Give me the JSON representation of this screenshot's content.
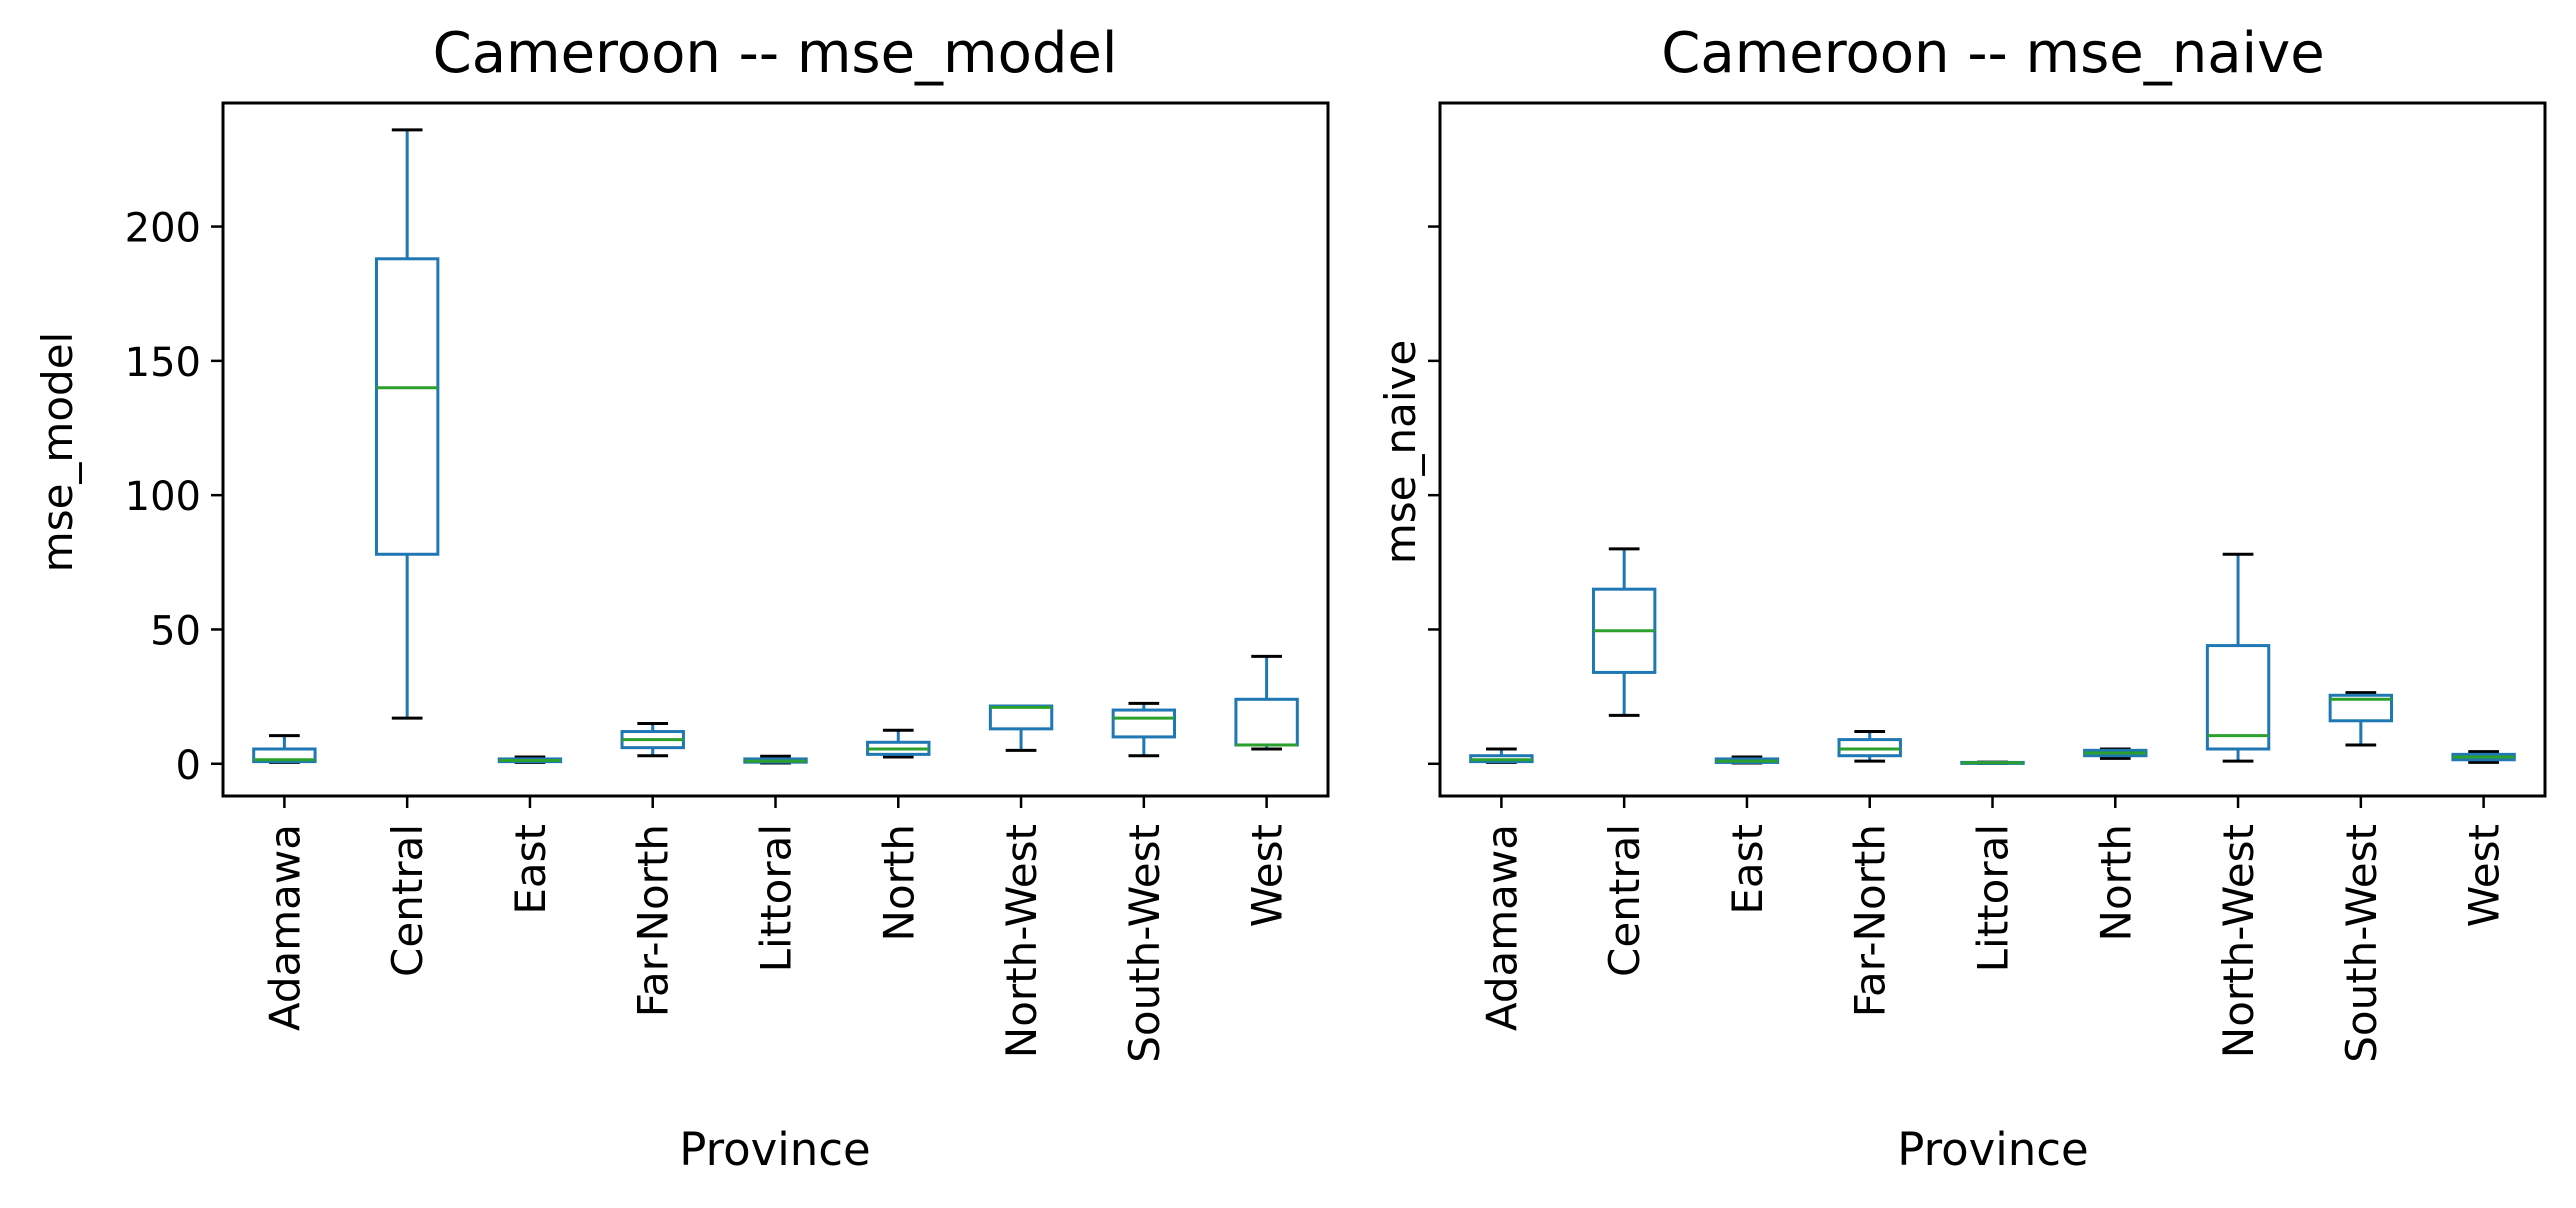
{
  "chart_data": [
    {
      "type": "box",
      "title": "Cameroon -- mse_model",
      "xlabel": "Province",
      "ylabel": "mse_model",
      "ylim": [
        -12,
        246
      ],
      "yticks": [
        0,
        50,
        100,
        150,
        200
      ],
      "ytick_labels": [
        "0",
        "50",
        "100",
        "150",
        "200"
      ],
      "grid": false,
      "categories": [
        "Adamawa",
        "Central",
        "East",
        "Far-North",
        "Littoral",
        "North",
        "North-West",
        "South-West",
        "West"
      ],
      "boxes": [
        {
          "whisker_low": 0.5,
          "q1": 0.8,
          "median": 1.5,
          "q3": 5.5,
          "whisker_high": 10.5
        },
        {
          "whisker_low": 17,
          "q1": 78,
          "median": 140,
          "q3": 188,
          "whisker_high": 236
        },
        {
          "whisker_low": 0.5,
          "q1": 0.8,
          "median": 1.2,
          "q3": 1.8,
          "whisker_high": 2.5
        },
        {
          "whisker_low": 3,
          "q1": 6,
          "median": 9,
          "q3": 12,
          "whisker_high": 15
        },
        {
          "whisker_low": 0.3,
          "q1": 0.6,
          "median": 1,
          "q3": 1.8,
          "whisker_high": 2.8
        },
        {
          "whisker_low": 2.5,
          "q1": 3.5,
          "median": 5.5,
          "q3": 8,
          "whisker_high": 12.5
        },
        {
          "whisker_low": 5,
          "q1": 13,
          "median": 21,
          "q3": 21.5,
          "whisker_high": 21.5
        },
        {
          "whisker_low": 3,
          "q1": 10,
          "median": 17,
          "q3": 20,
          "whisker_high": 22.5
        },
        {
          "whisker_low": 5.5,
          "q1": 7,
          "median": 7,
          "q3": 24,
          "whisker_high": 40
        }
      ]
    },
    {
      "type": "box",
      "title": "Cameroon -- mse_naive",
      "xlabel": "Province",
      "ylabel": "mse_naive",
      "ylim": [
        -12,
        246
      ],
      "yticks": [
        0,
        50,
        100,
        150,
        200
      ],
      "ytick_labels": [
        "",
        "",
        "",
        "",
        ""
      ],
      "grid": false,
      "categories": [
        "Adamawa",
        "Central",
        "East",
        "Far-North",
        "Littoral",
        "North",
        "North-West",
        "South-West",
        "West"
      ],
      "boxes": [
        {
          "whisker_low": 0.5,
          "q1": 0.8,
          "median": 1.5,
          "q3": 3,
          "whisker_high": 5.5
        },
        {
          "whisker_low": 18,
          "q1": 34,
          "median": 49.5,
          "q3": 65,
          "whisker_high": 80
        },
        {
          "whisker_low": 0.3,
          "q1": 0.5,
          "median": 1,
          "q3": 1.8,
          "whisker_high": 2.5
        },
        {
          "whisker_low": 1,
          "q1": 3,
          "median": 5.5,
          "q3": 9,
          "whisker_high": 12
        },
        {
          "whisker_low": 0.1,
          "q1": 0.2,
          "median": 0.4,
          "q3": 0.5,
          "whisker_high": 0.6
        },
        {
          "whisker_low": 2,
          "q1": 3,
          "median": 4,
          "q3": 5,
          "whisker_high": 5.5
        },
        {
          "whisker_low": 1,
          "q1": 5.5,
          "median": 10.5,
          "q3": 44,
          "whisker_high": 78
        },
        {
          "whisker_low": 7,
          "q1": 16,
          "median": 24,
          "q3": 25.5,
          "whisker_high": 26.5
        },
        {
          "whisker_low": 0.5,
          "q1": 1.5,
          "median": 2.5,
          "q3": 3.5,
          "whisker_high": 4.5
        }
      ]
    }
  ],
  "colors": {
    "box": "#1f77b4",
    "median": "#2ca02c",
    "cap": "#000000",
    "axes": "#000000"
  }
}
